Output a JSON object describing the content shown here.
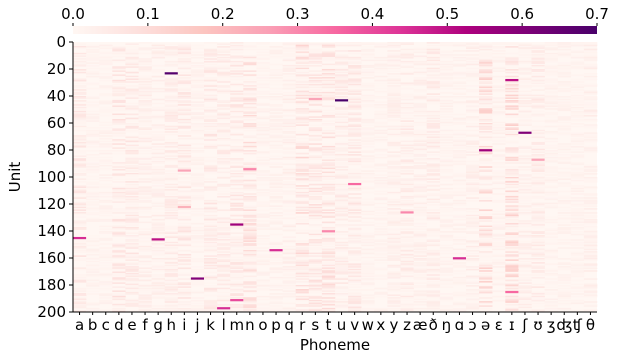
{
  "chart_data": {
    "type": "heatmap",
    "xlabel": "Phoneme",
    "ylabel": "Unit",
    "x_categories": [
      "a",
      "b",
      "c",
      "d",
      "e",
      "f",
      "g",
      "h",
      "i",
      "j",
      "k",
      "l",
      "m",
      "n",
      "o",
      "p",
      "q",
      "r",
      "s",
      "t",
      "u",
      "v",
      "w",
      "x",
      "y",
      "z",
      "æ",
      "ð",
      "ŋ",
      "ɑ",
      "ɔ",
      "ə",
      "ɛ",
      "ɪ",
      "ʃ",
      "ʊ",
      "ʒ",
      "ʤ",
      "ʧ",
      "θ"
    ],
    "y_range": [
      0,
      200
    ],
    "y_ticks": [
      0,
      20,
      40,
      60,
      80,
      100,
      120,
      140,
      160,
      180,
      200
    ],
    "colorbar": {
      "position": "top",
      "range": [
        0.0,
        0.7
      ],
      "ticks": [
        0.0,
        0.1,
        0.2,
        0.3,
        0.4,
        0.5,
        0.6,
        0.7
      ],
      "tick_labels": [
        "0.0",
        "0.1",
        "0.2",
        "0.3",
        "0.4",
        "0.5",
        "0.6",
        "0.7"
      ],
      "colormap": "RdPu",
      "colors": [
        "#fff7f3",
        "#fde0dd",
        "#fcc5c0",
        "#fa9fb5",
        "#f768a1",
        "#dd3497",
        "#ae017e",
        "#7a0177",
        "#49006a"
      ]
    },
    "column_activity": [
      0.05,
      0.02,
      0.02,
      0.06,
      0.05,
      0.03,
      0.03,
      0.04,
      0.05,
      0.02,
      0.05,
      0.04,
      0.05,
      0.07,
      0.02,
      0.02,
      0.03,
      0.08,
      0.06,
      0.07,
      0.04,
      0.05,
      0.02,
      0.02,
      0.03,
      0.04,
      0.03,
      0.04,
      0.02,
      0.02,
      0.03,
      0.09,
      0.02,
      0.09,
      0.03,
      0.04,
      0.02,
      0.02,
      0.02,
      0.03
    ],
    "highlights": [
      {
        "phoneme": "a",
        "unit": 145,
        "value": 0.45
      },
      {
        "phoneme": "h",
        "unit": 23,
        "value": 0.68
      },
      {
        "phoneme": "i",
        "unit": 95,
        "value": 0.25
      },
      {
        "phoneme": "i",
        "unit": 122,
        "value": 0.22
      },
      {
        "phoneme": "j",
        "unit": 175,
        "value": 0.6
      },
      {
        "phoneme": "g",
        "unit": 146,
        "value": 0.5
      },
      {
        "phoneme": "m",
        "unit": 135,
        "value": 0.55
      },
      {
        "phoneme": "m",
        "unit": 191,
        "value": 0.4
      },
      {
        "phoneme": "n",
        "unit": 94,
        "value": 0.3
      },
      {
        "phoneme": "l",
        "unit": 197,
        "value": 0.45
      },
      {
        "phoneme": "p",
        "unit": 154,
        "value": 0.45
      },
      {
        "phoneme": "u",
        "unit": 43,
        "value": 0.7
      },
      {
        "phoneme": "v",
        "unit": 105,
        "value": 0.35
      },
      {
        "phoneme": "ɑ",
        "unit": 160,
        "value": 0.45
      },
      {
        "phoneme": "ə",
        "unit": 80,
        "value": 0.55
      },
      {
        "phoneme": "ɪ",
        "unit": 28,
        "value": 0.5
      },
      {
        "phoneme": "ɪ",
        "unit": 185,
        "value": 0.35
      },
      {
        "phoneme": "ʃ",
        "unit": 67,
        "value": 0.6
      },
      {
        "phoneme": "ʊ",
        "unit": 87,
        "value": 0.25
      },
      {
        "phoneme": "s",
        "unit": 42,
        "value": 0.25
      },
      {
        "phoneme": "t",
        "unit": 140,
        "value": 0.3
      },
      {
        "phoneme": "z",
        "unit": 126,
        "value": 0.3
      }
    ]
  }
}
